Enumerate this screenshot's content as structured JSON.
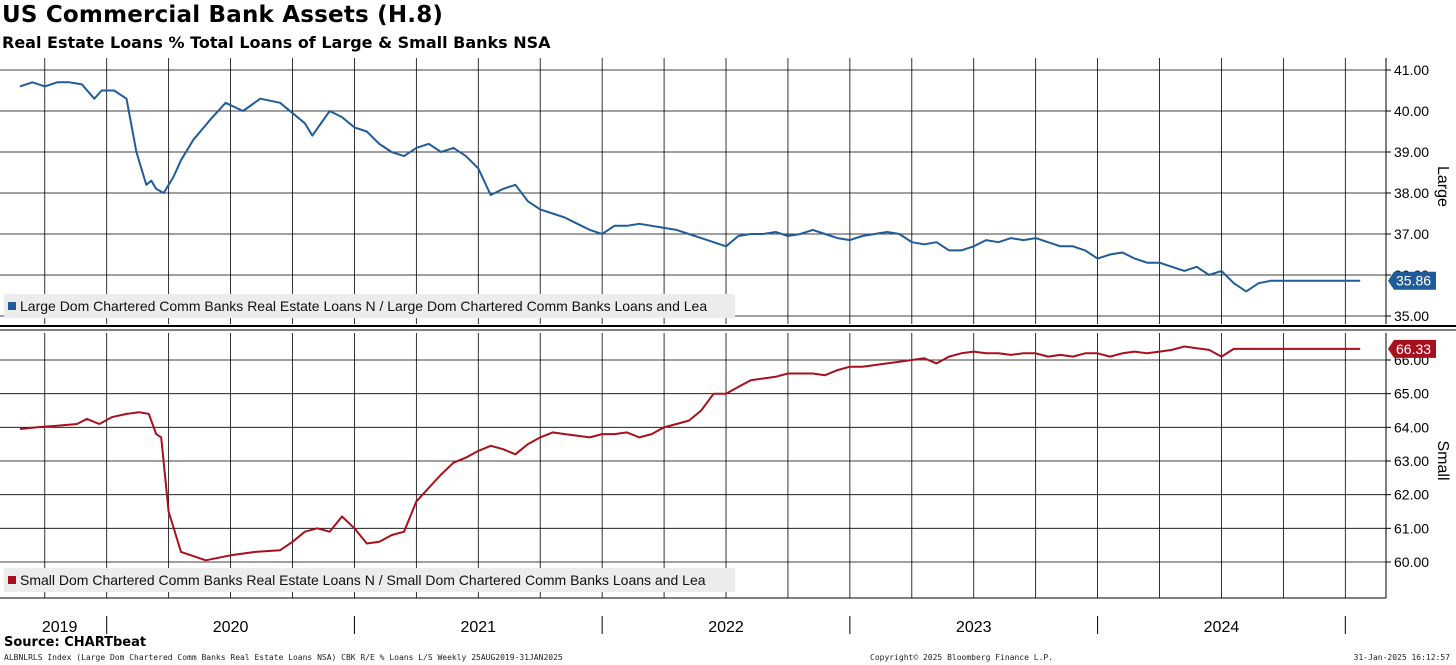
{
  "title": "US Commercial Bank Assets (H.8)",
  "subtitle": "Real Estate Loans % Total Loans of Large & Small Banks NSA",
  "source": "Source: CHARTbeat",
  "footer": {
    "left": "ALBNLRLS Index (Large Dom Chartered Comm Banks Real Estate Loans NSA) CBK R/E % Loans L/S  Weekly 25AUG2019-31JAN2025",
    "mid": "Copyright© 2025 Bloomberg Finance L.P.",
    "right": "31-Jan-2025 16:12:57"
  },
  "colors": {
    "large": "#1f5c99",
    "small": "#a8101e",
    "grid": "#000000",
    "legend_bg": "#ececec"
  },
  "chart_data": [
    {
      "type": "line",
      "panel": "top",
      "axis_title": "Large",
      "legend": "Large Dom Chartered Comm Banks Real Estate Loans N / Large Dom Chartered Comm Banks Loans and Lea",
      "last_value_label": "35.86",
      "ylim": [
        34.7,
        41.3
      ],
      "yticks": [
        35,
        36,
        37,
        38,
        39,
        40,
        41
      ],
      "ytick_labels": [
        "35.00",
        "36.00",
        "37.00",
        "38.00",
        "39.00",
        "40.00",
        "41.00"
      ],
      "x": [
        2019.65,
        2019.7,
        2019.75,
        2019.8,
        2019.85,
        2019.9,
        2019.95,
        2019.98,
        2020.03,
        2020.08,
        2020.12,
        2020.16,
        2020.18,
        2020.2,
        2020.23,
        2020.27,
        2020.3,
        2020.35,
        2020.42,
        2020.48,
        2020.55,
        2020.62,
        2020.7,
        2020.8,
        2020.83,
        2020.9,
        2020.95,
        2021.0,
        2021.05,
        2021.1,
        2021.15,
        2021.2,
        2021.25,
        2021.3,
        2021.35,
        2021.4,
        2021.45,
        2021.5,
        2021.55,
        2021.6,
        2021.65,
        2021.7,
        2021.75,
        2021.8,
        2021.85,
        2021.9,
        2021.95,
        2022.0,
        2022.05,
        2022.1,
        2022.15,
        2022.2,
        2022.25,
        2022.3,
        2022.35,
        2022.4,
        2022.45,
        2022.5,
        2022.55,
        2022.6,
        2022.65,
        2022.7,
        2022.75,
        2022.8,
        2022.85,
        2022.9,
        2022.95,
        2023.0,
        2023.05,
        2023.1,
        2023.15,
        2023.2,
        2023.25,
        2023.3,
        2023.35,
        2023.4,
        2023.45,
        2023.5,
        2023.55,
        2023.6,
        2023.65,
        2023.7,
        2023.75,
        2023.8,
        2023.85,
        2023.9,
        2023.95,
        2024.0,
        2024.05,
        2024.1,
        2024.15,
        2024.2,
        2024.25,
        2024.3,
        2024.35,
        2024.4,
        2024.45,
        2024.5,
        2024.55,
        2024.6,
        2024.65,
        2024.7,
        2024.75,
        2024.8,
        2024.85,
        2024.9,
        2024.95,
        2025.0,
        2025.03,
        2025.06
      ],
      "values": [
        40.6,
        40.7,
        40.6,
        40.7,
        40.7,
        40.65,
        40.3,
        40.5,
        40.5,
        40.3,
        39.0,
        38.2,
        38.3,
        38.1,
        38.0,
        38.4,
        38.8,
        39.3,
        39.8,
        40.2,
        40.0,
        40.3,
        40.2,
        39.7,
        39.4,
        40.0,
        39.85,
        39.6,
        39.5,
        39.2,
        39.0,
        38.9,
        39.1,
        39.2,
        39.0,
        39.1,
        38.9,
        38.6,
        37.95,
        38.1,
        38.2,
        37.8,
        37.6,
        37.5,
        37.4,
        37.25,
        37.1,
        37.0,
        37.2,
        37.2,
        37.25,
        37.2,
        37.15,
        37.1,
        37.0,
        36.9,
        36.8,
        36.7,
        36.95,
        37.0,
        37.0,
        37.05,
        36.95,
        37.0,
        37.1,
        37.0,
        36.9,
        36.85,
        36.95,
        37.0,
        37.05,
        37.0,
        36.8,
        36.75,
        36.8,
        36.6,
        36.6,
        36.7,
        36.85,
        36.8,
        36.9,
        36.85,
        36.9,
        36.8,
        36.7,
        36.7,
        36.6,
        36.4,
        36.5,
        36.55,
        36.4,
        36.3,
        36.3,
        36.2,
        36.1,
        36.2,
        36.0,
        36.1,
        35.8,
        35.6,
        35.8,
        35.86,
        35.86,
        35.86,
        35.86,
        35.86,
        35.86,
        35.86,
        35.86,
        35.86
      ]
    },
    {
      "type": "line",
      "panel": "bottom",
      "axis_title": "Small",
      "legend": "Small Dom Chartered Comm Banks Real Estate Loans N / Small Dom Chartered Comm Banks Loans and Lea",
      "last_value_label": "66.33",
      "ylim": [
        59.0,
        66.6
      ],
      "yticks": [
        60,
        61,
        62,
        63,
        64,
        65,
        66
      ],
      "ytick_labels": [
        "60.00",
        "61.00",
        "62.00",
        "63.00",
        "64.00",
        "65.00",
        "66.00"
      ],
      "x": [
        2019.65,
        2019.72,
        2019.8,
        2019.88,
        2019.92,
        2019.97,
        2020.02,
        2020.08,
        2020.13,
        2020.17,
        2020.2,
        2020.22,
        2020.25,
        2020.3,
        2020.4,
        2020.5,
        2020.6,
        2020.7,
        2020.75,
        2020.8,
        2020.85,
        2020.9,
        2020.95,
        2021.0,
        2021.05,
        2021.1,
        2021.15,
        2021.2,
        2021.25,
        2021.3,
        2021.35,
        2021.4,
        2021.45,
        2021.5,
        2021.55,
        2021.6,
        2021.65,
        2021.7,
        2021.75,
        2021.8,
        2021.85,
        2021.9,
        2021.95,
        2022.0,
        2022.05,
        2022.1,
        2022.15,
        2022.2,
        2022.25,
        2022.3,
        2022.35,
        2022.4,
        2022.45,
        2022.5,
        2022.55,
        2022.6,
        2022.65,
        2022.7,
        2022.75,
        2022.8,
        2022.85,
        2022.9,
        2022.95,
        2023.0,
        2023.05,
        2023.1,
        2023.15,
        2023.2,
        2023.25,
        2023.3,
        2023.35,
        2023.4,
        2023.45,
        2023.5,
        2023.55,
        2023.6,
        2023.65,
        2023.7,
        2023.75,
        2023.8,
        2023.85,
        2023.9,
        2023.95,
        2024.0,
        2024.05,
        2024.1,
        2024.15,
        2024.2,
        2024.25,
        2024.3,
        2024.35,
        2024.4,
        2024.45,
        2024.5,
        2024.55,
        2024.6,
        2024.65,
        2024.7,
        2024.75,
        2024.8,
        2024.85,
        2024.9,
        2024.95,
        2025.0,
        2025.03,
        2025.06
      ],
      "values": [
        63.95,
        64.0,
        64.05,
        64.1,
        64.25,
        64.1,
        64.3,
        64.4,
        64.45,
        64.4,
        63.8,
        63.7,
        61.5,
        60.3,
        60.05,
        60.2,
        60.3,
        60.35,
        60.6,
        60.9,
        61.0,
        60.9,
        61.35,
        61.0,
        60.55,
        60.6,
        60.8,
        60.9,
        61.8,
        62.2,
        62.6,
        62.95,
        63.1,
        63.3,
        63.45,
        63.35,
        63.2,
        63.5,
        63.7,
        63.85,
        63.8,
        63.75,
        63.7,
        63.8,
        63.8,
        63.85,
        63.7,
        63.8,
        64.0,
        64.1,
        64.2,
        64.5,
        65.0,
        65.0,
        65.2,
        65.4,
        65.45,
        65.5,
        65.6,
        65.6,
        65.6,
        65.55,
        65.7,
        65.8,
        65.8,
        65.85,
        65.9,
        65.95,
        66.0,
        66.05,
        65.9,
        66.1,
        66.2,
        66.25,
        66.2,
        66.2,
        66.15,
        66.2,
        66.2,
        66.1,
        66.15,
        66.1,
        66.2,
        66.2,
        66.1,
        66.2,
        66.25,
        66.2,
        66.25,
        66.3,
        66.4,
        66.35,
        66.3,
        66.1,
        66.33,
        66.33,
        66.33,
        66.33,
        66.33,
        66.33,
        66.33,
        66.33,
        66.33,
        66.33,
        66.33,
        66.33
      ]
    }
  ],
  "x_axis": {
    "year_labels": [
      {
        "label": "2019",
        "center": 2019.81
      },
      {
        "label": "2020",
        "center": 2020.5
      },
      {
        "label": "2021",
        "center": 2021.5
      },
      {
        "label": "2022",
        "center": 2022.5
      },
      {
        "label": "2023",
        "center": 2023.5
      },
      {
        "label": "2024",
        "center": 2024.5
      }
    ],
    "year_boundaries": [
      2020.0,
      2021.0,
      2022.0,
      2023.0,
      2024.0,
      2025.0
    ],
    "xlim": [
      2019.65,
      2025.14
    ]
  }
}
